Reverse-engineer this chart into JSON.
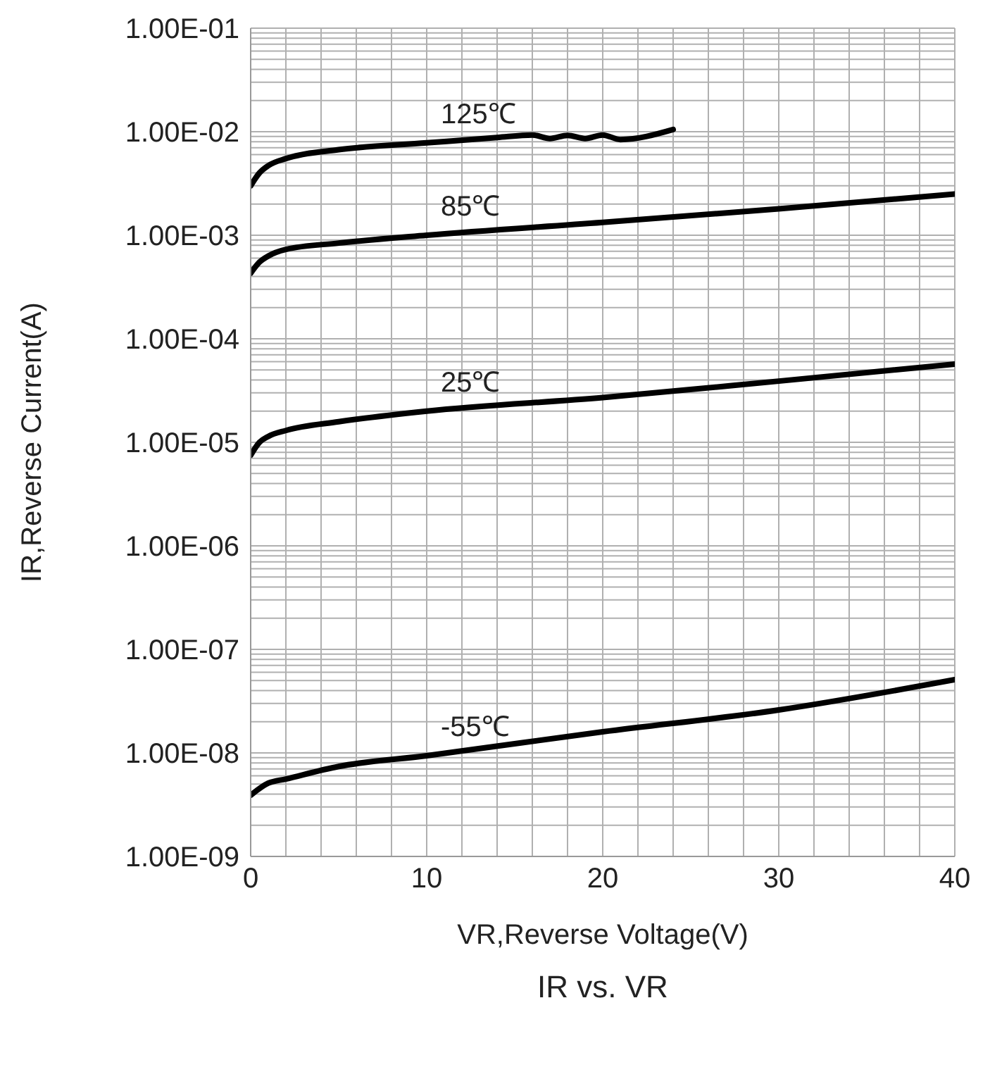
{
  "chart_data": {
    "type": "line",
    "title": "IR vs. VR",
    "xlabel": "VR,Reverse Voltage(V)",
    "ylabel": "IR,Reverse Current(A)",
    "log": "y",
    "grid": true,
    "marker": "none",
    "line_style": "solid",
    "legend": false,
    "xlim": [
      0,
      40
    ],
    "xticks": [
      0,
      10,
      20,
      30,
      40
    ],
    "ylim": [
      1e-09,
      0.1
    ],
    "yticks": [
      {
        "value": 1e-09,
        "label": "1.00E-09"
      },
      {
        "value": 1e-08,
        "label": "1.00E-08"
      },
      {
        "value": 1e-07,
        "label": "1.00E-07"
      },
      {
        "value": 1e-06,
        "label": "1.00E-06"
      },
      {
        "value": 1e-05,
        "label": "1.00E-05"
      },
      {
        "value": 0.0001,
        "label": "1.00E-04"
      },
      {
        "value": 0.001,
        "label": "1.00E-03"
      },
      {
        "value": 0.01,
        "label": "1.00E-02"
      },
      {
        "value": 0.1,
        "label": "1.00E-01"
      }
    ],
    "series": [
      {
        "name": "125℃",
        "color": "#000000",
        "x": [
          0,
          0.5,
          1,
          2,
          5,
          10,
          14,
          16,
          17,
          18,
          19,
          20,
          21,
          24
        ],
        "values": [
          0.003,
          0.004,
          0.0047,
          0.0055,
          0.0067,
          0.0078,
          0.0088,
          0.0093,
          0.0086,
          0.0092,
          0.0086,
          0.0093,
          0.0084,
          0.0105
        ]
      },
      {
        "name": "85℃",
        "color": "#000000",
        "x": [
          0,
          0.5,
          1,
          2,
          5,
          10,
          20,
          30,
          40
        ],
        "values": [
          0.00043,
          0.00055,
          0.00063,
          0.00073,
          0.00084,
          0.001,
          0.00133,
          0.0018,
          0.0025
        ]
      },
      {
        "name": "25℃",
        "color": "#000000",
        "x": [
          0,
          0.5,
          1,
          2,
          5,
          10,
          20,
          30,
          40
        ],
        "values": [
          7.5e-06,
          1e-05,
          1.14e-05,
          1.3e-05,
          1.58e-05,
          2e-05,
          2.7e-05,
          3.9e-05,
          5.7e-05
        ]
      },
      {
        "name": "-55℃",
        "color": "#000000",
        "x": [
          0,
          1,
          2,
          5,
          10,
          20,
          30,
          40
        ],
        "values": [
          3.9e-09,
          5.1e-09,
          5.6e-09,
          7.4e-09,
          9.4e-09,
          1.6e-08,
          2.6e-08,
          5.1e-08
        ]
      }
    ]
  }
}
